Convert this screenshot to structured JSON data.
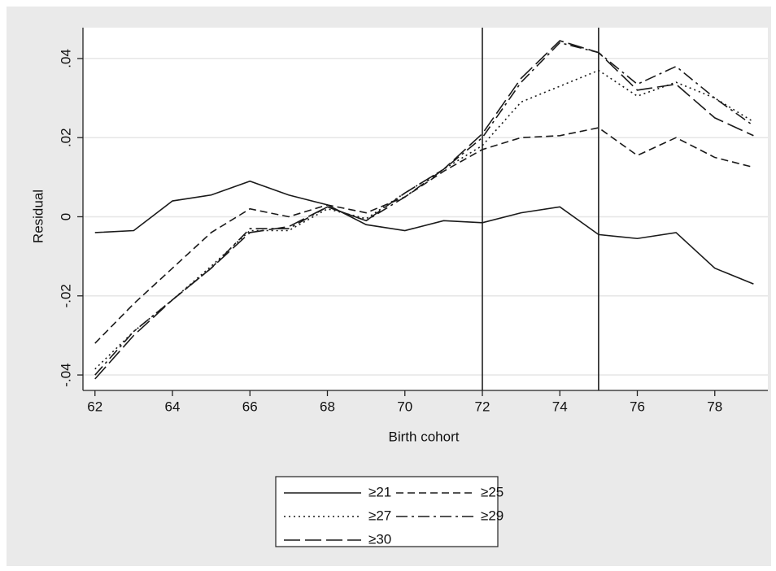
{
  "chart_data": {
    "type": "line",
    "xlabel": "Birth cohort",
    "ylabel": "Residual",
    "x": [
      62,
      63,
      64,
      65,
      66,
      67,
      68,
      69,
      70,
      71,
      72,
      73,
      74,
      75,
      76,
      77,
      78,
      79
    ],
    "xlim": [
      61.69,
      79.37
    ],
    "xticks": [
      62,
      64,
      66,
      68,
      70,
      72,
      74,
      76,
      78
    ],
    "ylim": [
      -0.0439,
      0.0478
    ],
    "yticks": [
      {
        "value": -0.04,
        "label": "-.04"
      },
      {
        "value": -0.02,
        "label": "-.02"
      },
      0,
      {
        "value": 0.02,
        "label": ".02"
      },
      {
        "value": 0.04,
        "label": ".04"
      }
    ],
    "grid": true,
    "xlines": [
      72,
      75
    ],
    "legend_position": "bottom",
    "series": [
      {
        "name": "≥21",
        "color": "#1a1a1a",
        "line_style": "solid",
        "values": [
          -0.004,
          -0.0035,
          0.004,
          0.0055,
          0.009,
          0.0055,
          0.003,
          -0.002,
          -0.0035,
          -0.001,
          -0.0015,
          0.001,
          0.0025,
          -0.0045,
          -0.0055,
          -0.004,
          -0.013,
          -0.017
        ]
      },
      {
        "name": "≥25",
        "color": "#1a1a1a",
        "line_style": "dash",
        "values": [
          -0.032,
          -0.022,
          -0.013,
          -0.004,
          0.002,
          0.0,
          0.003,
          0.001,
          0.005,
          0.0115,
          0.017,
          0.02,
          0.0205,
          0.0225,
          0.0155,
          0.02,
          0.015,
          0.0125
        ]
      },
      {
        "name": "≥27",
        "color": "#1a1a1a",
        "line_style": "dot",
        "values": [
          -0.0385,
          -0.029,
          -0.021,
          -0.0125,
          -0.0035,
          -0.0035,
          0.002,
          -0.0005,
          0.006,
          0.012,
          0.018,
          0.029,
          0.033,
          0.037,
          0.0305,
          0.034,
          0.03,
          0.024
        ]
      },
      {
        "name": "≥29",
        "color": "#1a1a1a",
        "line_style": "dashdot",
        "values": [
          -0.04,
          -0.029,
          -0.021,
          -0.013,
          -0.003,
          -0.003,
          0.0025,
          -0.001,
          0.005,
          0.012,
          0.02,
          0.034,
          0.044,
          0.0415,
          0.0335,
          0.038,
          0.03,
          0.023
        ]
      },
      {
        "name": "≥30",
        "color": "#1a1a1a",
        "line_style": "longdash",
        "values": [
          -0.041,
          -0.03,
          -0.021,
          -0.013,
          -0.004,
          -0.0025,
          0.0025,
          -0.001,
          0.006,
          0.012,
          0.021,
          0.035,
          0.0445,
          0.0415,
          0.032,
          0.0335,
          0.025,
          0.0205
        ]
      }
    ]
  }
}
